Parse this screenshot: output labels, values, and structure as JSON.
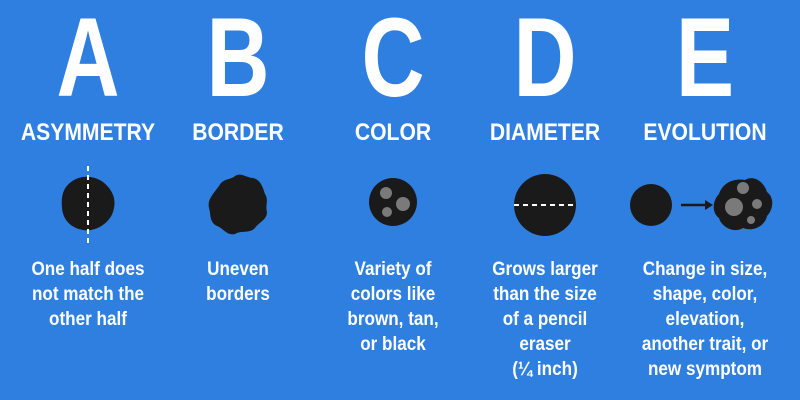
{
  "background_color": "#2f7fe0",
  "mole_color": "#1a1a1a",
  "spot_color": "#7a7a7a",
  "columns": [
    {
      "letter": "A",
      "label": "ASYMMETRY",
      "icon": "asymmetric-mole-icon",
      "description": [
        "One half does",
        "not match the",
        "other half"
      ]
    },
    {
      "letter": "B",
      "label": "BORDER",
      "icon": "uneven-border-mole-icon",
      "description": [
        "Uneven",
        "borders"
      ]
    },
    {
      "letter": "C",
      "label": "COLOR",
      "icon": "multicolor-mole-icon",
      "description": [
        "Variety of",
        "colors like",
        "brown, tan,",
        "or black"
      ]
    },
    {
      "letter": "D",
      "label": "DIAMETER",
      "icon": "diameter-mole-icon",
      "description": [
        "Grows larger",
        "than the size",
        "of a pencil",
        "eraser",
        "(¼ inch)"
      ]
    },
    {
      "letter": "E",
      "label": "EVOLUTION",
      "icon": "evolving-mole-icon",
      "description": [
        "Change in size,",
        "shape, color,",
        "elevation,",
        "another trait, or",
        "new symptom"
      ]
    }
  ]
}
